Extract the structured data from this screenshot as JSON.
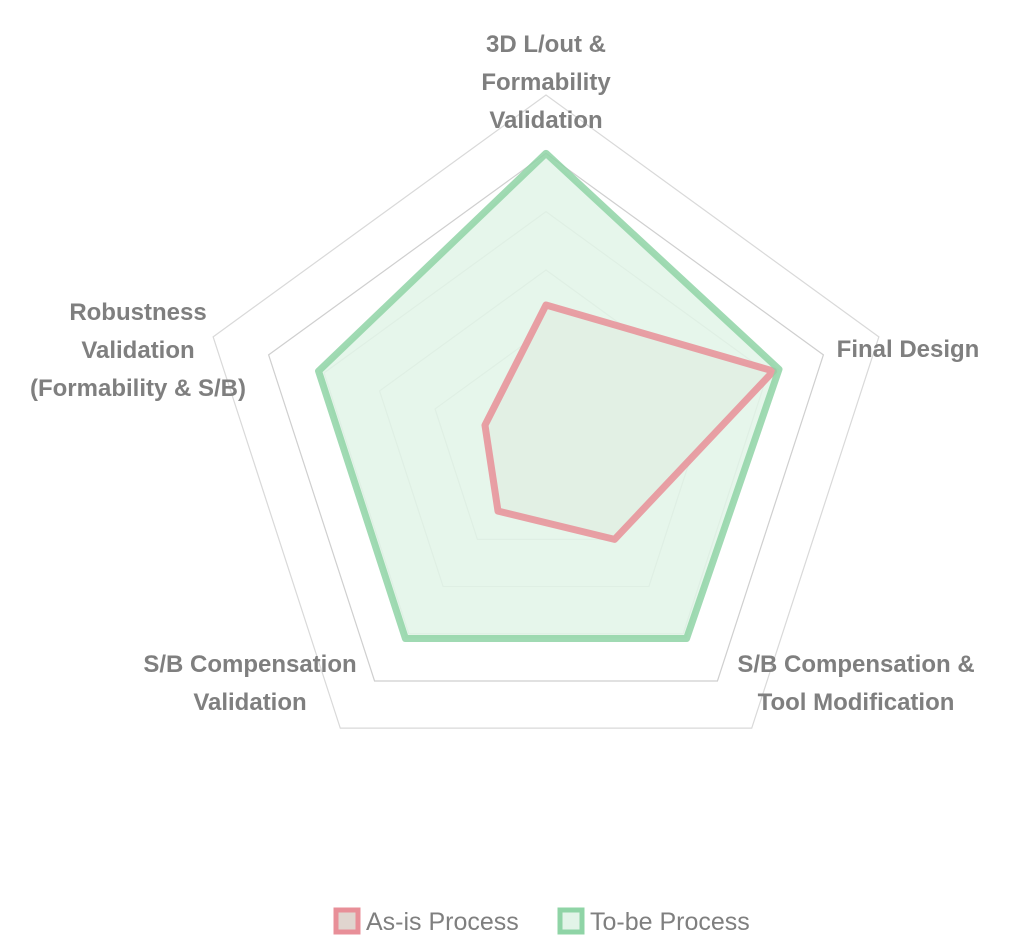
{
  "chart_data": {
    "type": "radar",
    "categories": [
      [
        "3D L/out &",
        "Formability",
        "Validation"
      ],
      [
        "Final Design"
      ],
      [
        "S/B Compensation &",
        "Tool Modification"
      ],
      [
        "S/B Compensation",
        "Validation"
      ],
      [
        "Robustness",
        "Validation",
        "(Formability & S/B)"
      ]
    ],
    "series": [
      {
        "name": "As-is Process",
        "values": [
          2.4,
          4.1,
          2.0,
          1.4,
          1.1
        ],
        "color": "#e88f98",
        "fill": "#e0d5cf"
      },
      {
        "name": "To-be Process",
        "values": [
          5.0,
          4.2,
          4.1,
          4.1,
          4.1
        ],
        "color": "#8fd4a6",
        "fill": "#e2f4e8"
      }
    ],
    "rlim": [
      0,
      6
    ],
    "grid_levels": 6,
    "grid": true,
    "legend_position": "bottom"
  }
}
